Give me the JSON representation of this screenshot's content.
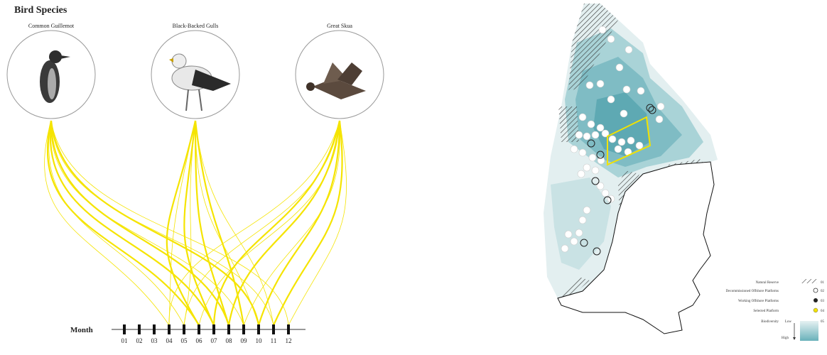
{
  "header": {
    "title": "Bird Species"
  },
  "species": [
    {
      "name": "Common Guillemot"
    },
    {
      "name": "Black-Backed Gulls"
    },
    {
      "name": "Great Skua"
    }
  ],
  "timeline": {
    "label": "Month",
    "months": [
      "01",
      "02",
      "03",
      "04",
      "05",
      "06",
      "07",
      "08",
      "09",
      "10",
      "11",
      "12"
    ]
  },
  "legend": {
    "items": [
      {
        "label": "Natural Reserve",
        "code": "01"
      },
      {
        "label": "Decommissioned Offshore Platforms",
        "code": "02"
      },
      {
        "label": "Working Offshore Platforms",
        "code": "03"
      },
      {
        "label": "Selected Platform",
        "code": "04"
      },
      {
        "label": "Biodiversity",
        "code": "05",
        "low": "Low",
        "high": "High"
      }
    ]
  }
}
